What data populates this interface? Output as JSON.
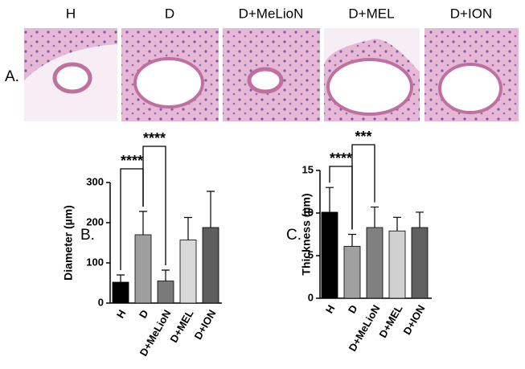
{
  "panel_a": {
    "label": "A.",
    "columns": [
      "H",
      "D",
      "D+MeLioN",
      "D+MEL",
      "D+ION"
    ]
  },
  "chart_data": [
    {
      "type": "bar",
      "panel_label": "B.",
      "ylabel": "Diameter (µm)",
      "categories": [
        "H",
        "D",
        "D+MeLioN",
        "D+MEL",
        "D+ION"
      ],
      "values": [
        52,
        170,
        55,
        157,
        188
      ],
      "errors": [
        18,
        58,
        27,
        56,
        90
      ],
      "colors": [
        "#000000",
        "#9e9e9e",
        "#7a7a7a",
        "#d9d9d9",
        "#5e5e5e"
      ],
      "ylim": [
        0,
        300
      ],
      "yticks": [
        0,
        100,
        200,
        300
      ],
      "annotations": [
        "****",
        "****"
      ]
    },
    {
      "type": "bar",
      "panel_label": "C.",
      "ylabel": "Thickness (µm)",
      "categories": [
        "H",
        "D",
        "D+MeLioN",
        "D+MEL",
        "D+ION"
      ],
      "values": [
        10.1,
        6.1,
        8.3,
        7.9,
        8.3
      ],
      "errors": [
        2.9,
        1.4,
        2.4,
        1.6,
        1.8
      ],
      "colors": [
        "#000000",
        "#a0a0a0",
        "#808080",
        "#d0d0d0",
        "#606060"
      ],
      "ylim": [
        0,
        15
      ],
      "yticks": [
        0,
        5,
        10,
        15
      ],
      "annotations": [
        "****",
        "***"
      ]
    }
  ]
}
